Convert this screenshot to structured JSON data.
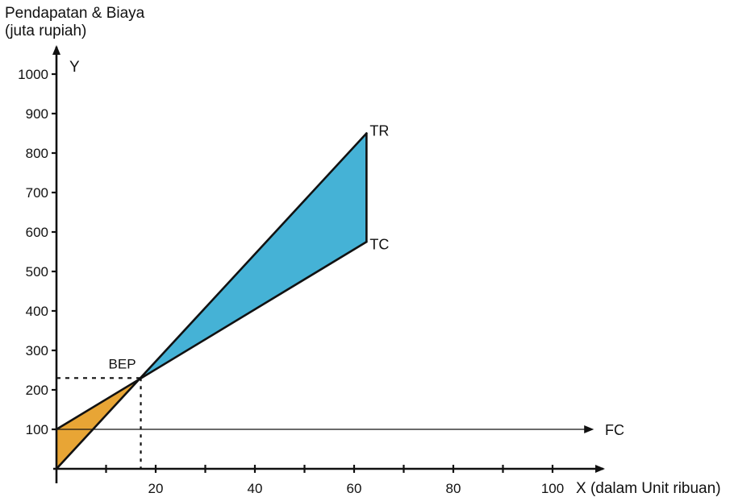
{
  "chart_data": {
    "type": "area",
    "title": "",
    "ylabel": [
      "Pendapatan & Biaya",
      "(juta rupiah)"
    ],
    "y_axis_letter": "Y",
    "xlabel": "X (dalam Unit ribuan)",
    "xlim": [
      0,
      100
    ],
    "ylim": [
      0,
      1000
    ],
    "y_ticks": [
      100,
      200,
      300,
      400,
      500,
      600,
      700,
      800,
      900,
      1000
    ],
    "x_tick_labels": [
      20,
      40,
      60,
      80,
      100
    ],
    "x_minor_ticks": [
      10,
      20,
      30,
      40,
      50,
      60,
      70,
      80,
      90,
      100
    ],
    "grid": false,
    "series": [
      {
        "name": "TR",
        "x": [
          0,
          62.5
        ],
        "y": [
          0,
          850
        ]
      },
      {
        "name": "TC",
        "x": [
          0,
          62.5
        ],
        "y": [
          100,
          575
        ]
      },
      {
        "name": "FC",
        "x": [
          0,
          108
        ],
        "y": [
          100,
          100
        ]
      }
    ],
    "bep": {
      "label": "BEP",
      "x": 17,
      "y": 230
    },
    "regions": [
      {
        "between": [
          "TR",
          "TC"
        ],
        "x": [
          0,
          17
        ],
        "color": "#e8a535"
      },
      {
        "between": [
          "TR",
          "TC"
        ],
        "x": [
          17,
          62.5
        ],
        "color": "#45b2d6"
      }
    ]
  }
}
